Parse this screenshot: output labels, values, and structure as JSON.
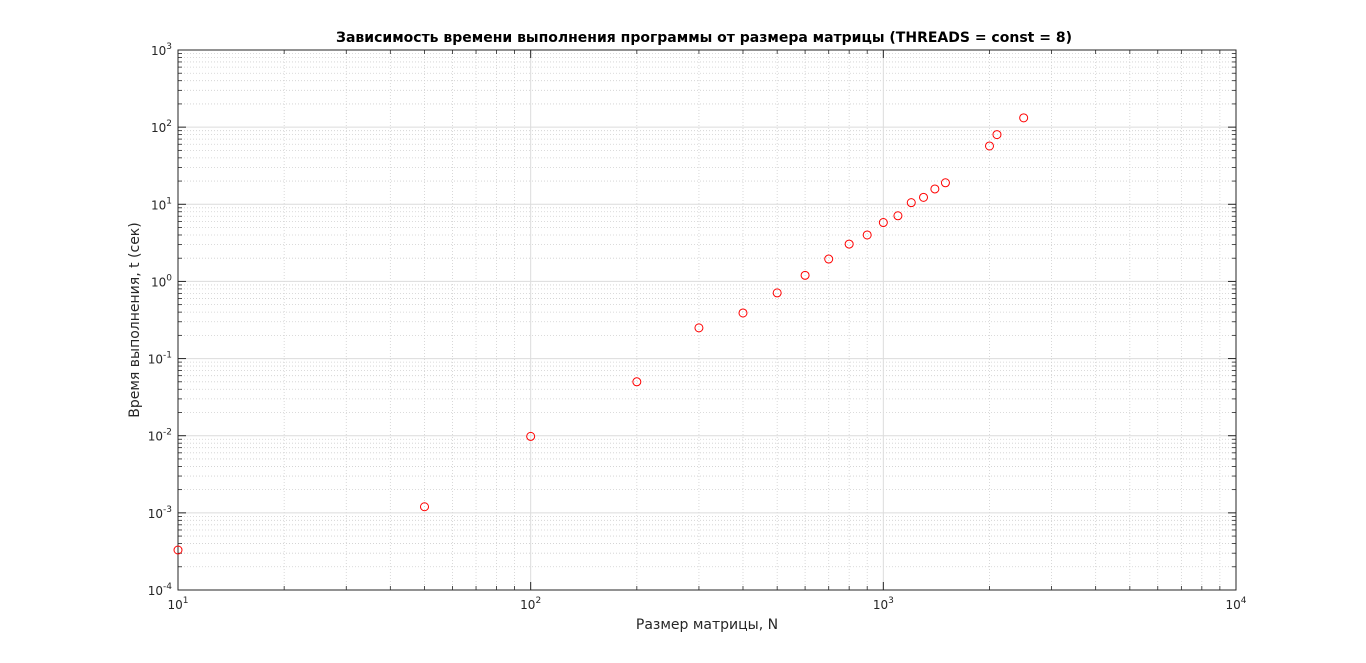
{
  "chart_data": {
    "type": "scatter",
    "title": "Зависимость времени выполнения программы от размера матрицы (THREADS = const = 8)",
    "xlabel": "Размер матрицы, N",
    "ylabel": "Время выполнения, t (сек)",
    "xscale": "log",
    "yscale": "log",
    "xlim": [
      10,
      10000
    ],
    "ylim": [
      0.0001,
      1000
    ],
    "grid": true,
    "minor_grid": true,
    "marker": "circle",
    "marker_color": "#ff0000",
    "x_ticks": [
      {
        "base": "10",
        "exp": "1",
        "value": 10
      },
      {
        "base": "10",
        "exp": "2",
        "value": 100
      },
      {
        "base": "10",
        "exp": "3",
        "value": 1000
      },
      {
        "base": "10",
        "exp": "4",
        "value": 10000
      }
    ],
    "y_ticks": [
      {
        "base": "10",
        "exp": "-4",
        "value": 0.0001
      },
      {
        "base": "10",
        "exp": "-3",
        "value": 0.001
      },
      {
        "base": "10",
        "exp": "-2",
        "value": 0.01
      },
      {
        "base": "10",
        "exp": "-1",
        "value": 0.1
      },
      {
        "base": "10",
        "exp": "0",
        "value": 1
      },
      {
        "base": "10",
        "exp": "1",
        "value": 10
      },
      {
        "base": "10",
        "exp": "2",
        "value": 100
      },
      {
        "base": "10",
        "exp": "3",
        "value": 1000
      }
    ],
    "points": [
      {
        "x": 10,
        "y": 0.00033
      },
      {
        "x": 50,
        "y": 0.0012
      },
      {
        "x": 100,
        "y": 0.0098
      },
      {
        "x": 200,
        "y": 0.05
      },
      {
        "x": 300,
        "y": 0.25
      },
      {
        "x": 400,
        "y": 0.39
      },
      {
        "x": 500,
        "y": 0.71
      },
      {
        "x": 600,
        "y": 1.2
      },
      {
        "x": 700,
        "y": 1.95
      },
      {
        "x": 800,
        "y": 3.05
      },
      {
        "x": 900,
        "y": 4.0
      },
      {
        "x": 1000,
        "y": 5.8
      },
      {
        "x": 1100,
        "y": 7.1
      },
      {
        "x": 1200,
        "y": 10.5
      },
      {
        "x": 1300,
        "y": 12.3
      },
      {
        "x": 1400,
        "y": 15.8
      },
      {
        "x": 1500,
        "y": 19.0
      },
      {
        "x": 2000,
        "y": 57.0
      },
      {
        "x": 2100,
        "y": 80.0
      },
      {
        "x": 2500,
        "y": 132.0
      }
    ]
  }
}
